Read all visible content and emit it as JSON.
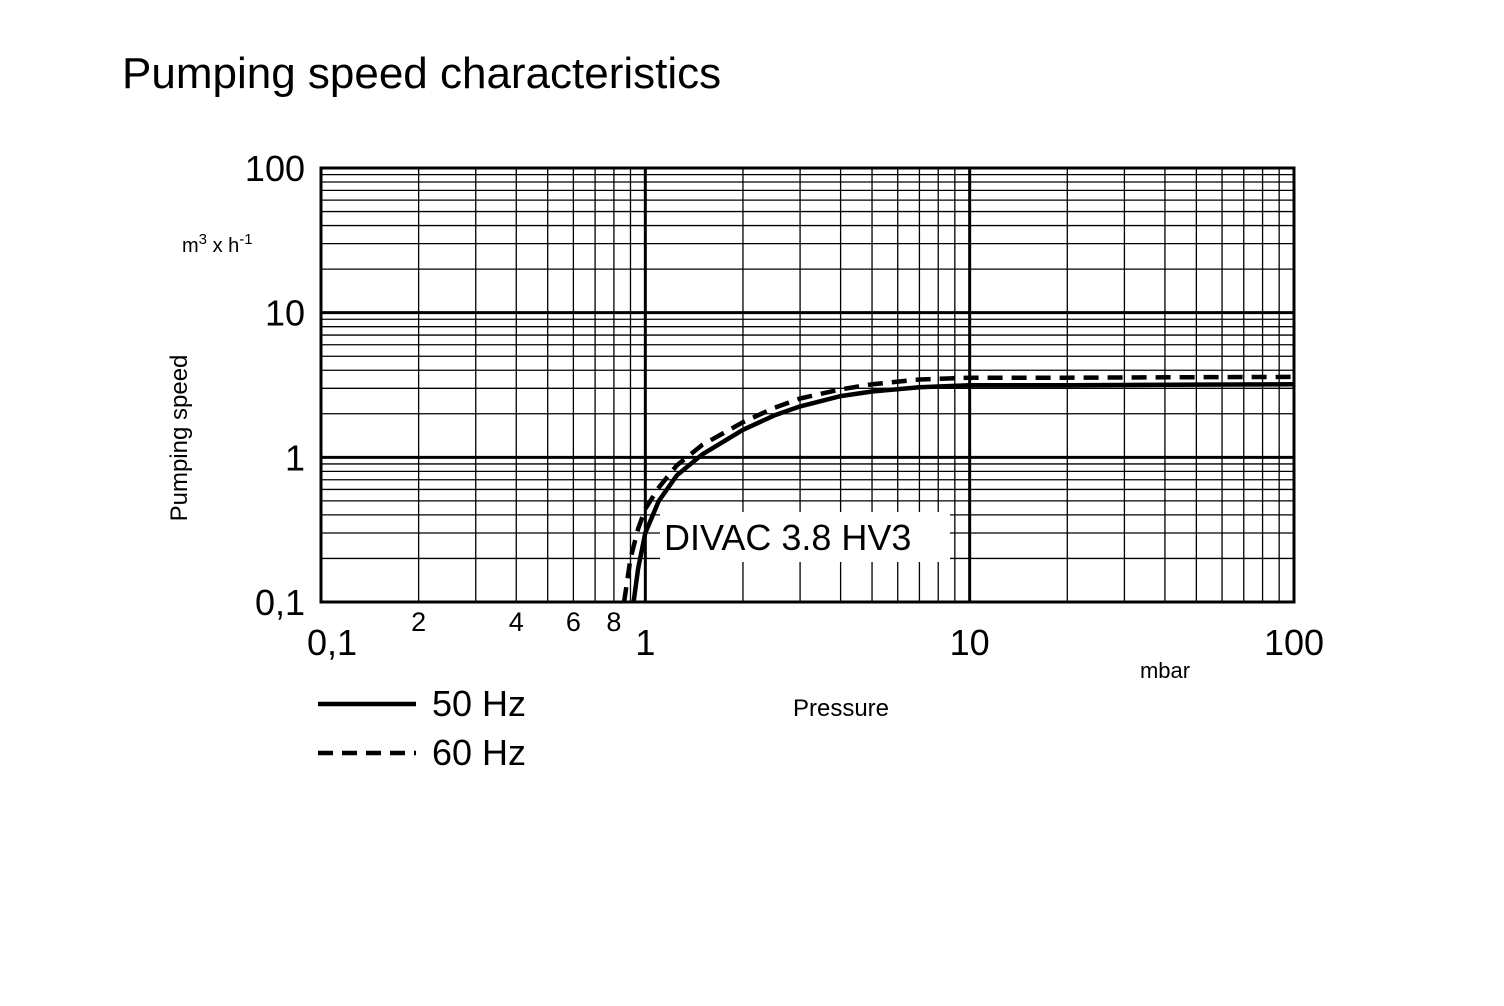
{
  "chart_data": {
    "type": "line",
    "title": "Pumping speed characteristics",
    "xlabel": "Pressure",
    "xunit": "mbar",
    "ylabel": "Pumping speed",
    "yunit": {
      "base1": "m",
      "sup1": "3",
      "mid": " x h",
      "sup2": "-1"
    },
    "xscale": "log",
    "yscale": "log",
    "xlim": [
      0.1,
      100
    ],
    "ylim": [
      0.1,
      100
    ],
    "grid": true,
    "x_tick_labels": [
      {
        "value": 0.1,
        "label": "0,1"
      },
      {
        "value": 1,
        "label": "1"
      },
      {
        "value": 10,
        "label": "10"
      },
      {
        "value": 100,
        "label": "100"
      }
    ],
    "x_minor_labels": [
      {
        "value": 0.2,
        "label": "2"
      },
      {
        "value": 0.4,
        "label": "4"
      },
      {
        "value": 0.6,
        "label": "6"
      },
      {
        "value": 0.8,
        "label": "8"
      }
    ],
    "y_tick_labels": [
      {
        "value": 100,
        "label": "100"
      },
      {
        "value": 10,
        "label": "10"
      },
      {
        "value": 1,
        "label": "1"
      },
      {
        "value": 0.1,
        "label": "0,1"
      }
    ],
    "annotation": "DIVAC  3.8 HV3",
    "legend_position": "bottom-left",
    "series": [
      {
        "name": "50 Hz",
        "style": "solid",
        "x": [
          0.92,
          0.95,
          1.0,
          1.1,
          1.25,
          1.5,
          2.0,
          2.5,
          3.0,
          4.0,
          5.0,
          7.0,
          10,
          20,
          50,
          100
        ],
        "y": [
          0.1,
          0.17,
          0.3,
          0.5,
          0.75,
          1.05,
          1.55,
          1.95,
          2.25,
          2.65,
          2.85,
          3.05,
          3.15,
          3.15,
          3.18,
          3.2
        ]
      },
      {
        "name": "60 Hz",
        "style": "dashed",
        "x": [
          0.86,
          0.9,
          0.95,
          1.0,
          1.1,
          1.25,
          1.5,
          2.0,
          2.5,
          3.0,
          4.0,
          5.0,
          7.0,
          10,
          20,
          50,
          100
        ],
        "y": [
          0.1,
          0.2,
          0.32,
          0.44,
          0.62,
          0.88,
          1.22,
          1.75,
          2.2,
          2.55,
          2.95,
          3.2,
          3.45,
          3.55,
          3.55,
          3.58,
          3.6
        ]
      }
    ]
  }
}
